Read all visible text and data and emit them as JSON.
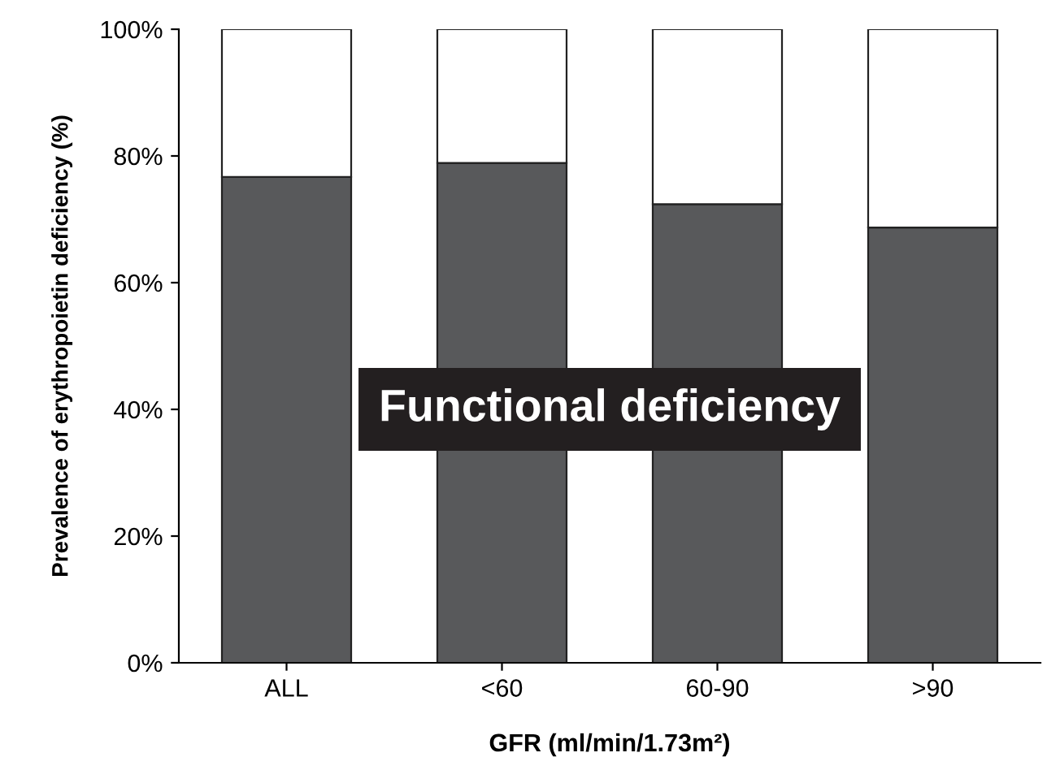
{
  "chart_data": {
    "type": "bar",
    "stacked": true,
    "xlabel": "GFR (ml/min/1.73m²)",
    "ylabel": "Prevalence of erythropoietin deficiency (%)",
    "categories": [
      "ALL",
      "<60",
      "60-90",
      ">90"
    ],
    "series": [
      {
        "color": "#58595b",
        "values": [
          76.7,
          78.9,
          72.4,
          68.7
        ]
      },
      {
        "color": "#ffffff",
        "values": [
          23.3,
          21.1,
          27.6,
          31.3
        ]
      }
    ],
    "ylim": [
      0,
      100
    ],
    "yticks": [
      {
        "value": 0,
        "label": "0%"
      },
      {
        "value": 20,
        "label": "20%"
      },
      {
        "value": 40,
        "label": "40%"
      },
      {
        "value": 60,
        "label": "60%"
      },
      {
        "value": 80,
        "label": "80%"
      },
      {
        "value": 100,
        "label": "100%"
      }
    ],
    "annotations": [
      "Functional deficiency"
    ],
    "grid": false,
    "legend": false
  }
}
